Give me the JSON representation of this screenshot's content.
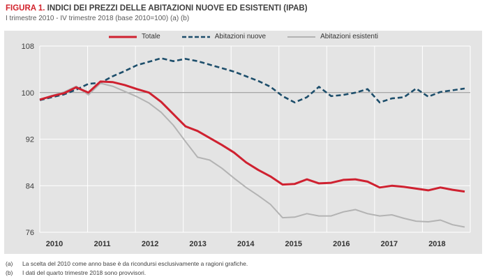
{
  "header": {
    "figure_label": "FIGURA 1.",
    "title": "INDICI DEI PREZZI DELLE ABITAZIONI NUOVE ED ESISTENTI (IPAB)",
    "subtitle": "I trimestre 2010 - IV trimestre 2018 (base 2010=100) (a) (b)"
  },
  "colors": {
    "accent_red": "#d2232c",
    "panel_bg": "#e4e4e4",
    "grid": "#ffffff",
    "baseline_100": "#8c8c8c",
    "axis_text": "#3c3c3c",
    "line_total": "#cf2130",
    "line_new": "#1d4e6b",
    "line_existing": "#b3b3b3"
  },
  "chart_data": {
    "type": "line",
    "title": "Indici dei prezzi delle abitazioni nuove ed esistenti (IPAB)",
    "x_unit": "trimestre",
    "categories": [
      "I 2010",
      "II 2010",
      "III 2010",
      "IV 2010",
      "I 2011",
      "II 2011",
      "III 2011",
      "IV 2011",
      "I 2012",
      "II 2012",
      "III 2012",
      "IV 2012",
      "I 2013",
      "II 2013",
      "III 2013",
      "IV 2013",
      "I 2014",
      "II 2014",
      "III 2014",
      "IV 2014",
      "I 2015",
      "II 2015",
      "III 2015",
      "IV 2015",
      "I 2016",
      "II 2016",
      "III 2016",
      "IV 2016",
      "I 2017",
      "II 2017",
      "III 2017",
      "IV 2017",
      "I 2018",
      "II 2018",
      "III 2018",
      "IV 2018"
    ],
    "x_tick_labels": [
      "2010",
      "2011",
      "2012",
      "2013",
      "2014",
      "2015",
      "2016",
      "2017",
      "2018"
    ],
    "y_ticks": [
      76,
      84,
      92,
      100,
      108
    ],
    "ylim": [
      76,
      108
    ],
    "baseline": 100,
    "grid": true,
    "legend_position": "top-center",
    "series": [
      {
        "name": "Totale",
        "style": "solid",
        "color": "#cf2130",
        "width": 3,
        "values": [
          98.8,
          99.4,
          99.9,
          100.9,
          100.0,
          101.9,
          101.8,
          101.3,
          100.6,
          100.0,
          98.4,
          96.3,
          94.2,
          93.4,
          92.2,
          91.0,
          89.7,
          88.0,
          86.7,
          85.6,
          84.2,
          84.3,
          85.1,
          84.4,
          84.5,
          85.0,
          85.1,
          84.7,
          83.7,
          84.0,
          83.8,
          83.5,
          83.2,
          83.7,
          83.3,
          83.0
        ]
      },
      {
        "name": "Abitazioni nuove",
        "style": "dashed",
        "color": "#1d4e6b",
        "width": 2.6,
        "values": [
          98.7,
          99.2,
          99.7,
          100.5,
          101.5,
          101.7,
          102.8,
          103.7,
          104.7,
          105.3,
          105.9,
          105.4,
          105.8,
          105.4,
          104.8,
          104.2,
          103.6,
          102.8,
          102.0,
          101.0,
          99.4,
          98.3,
          99.2,
          101.0,
          99.4,
          99.6,
          100.0,
          100.6,
          98.3,
          99.0,
          99.2,
          100.7,
          99.3,
          100.1,
          100.4,
          100.7
        ]
      },
      {
        "name": "Abitazioni esistenti",
        "style": "solid",
        "color": "#b3b3b3",
        "width": 2,
        "values": [
          98.8,
          99.5,
          100.1,
          101.1,
          99.6,
          101.6,
          101.1,
          100.2,
          99.3,
          98.2,
          96.6,
          94.4,
          91.6,
          88.9,
          88.4,
          87.0,
          85.3,
          83.7,
          82.3,
          80.8,
          78.5,
          78.6,
          79.2,
          78.8,
          78.8,
          79.5,
          79.9,
          79.2,
          78.8,
          79.0,
          78.4,
          77.9,
          77.8,
          78.1,
          77.3,
          76.9
        ]
      }
    ]
  },
  "footnotes": [
    {
      "marker": "(a)",
      "text": "La scelta del 2010 come anno base è da ricondursi esclusivamente a ragioni grafiche."
    },
    {
      "marker": "(b)",
      "text": "I dati del quarto trimestre 2018 sono provvisori."
    }
  ]
}
